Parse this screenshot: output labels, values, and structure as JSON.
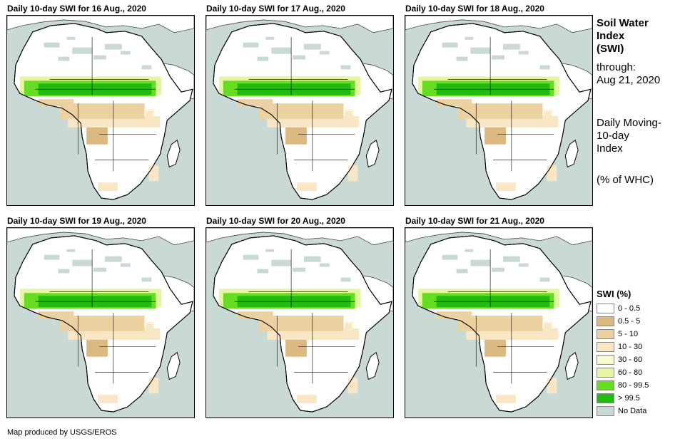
{
  "panels": [
    {
      "title": "Daily 10-day  SWI for 16 Aug., 2020"
    },
    {
      "title": "Daily 10-day  SWI for 17 Aug., 2020"
    },
    {
      "title": "Daily 10-day  SWI for 18 Aug., 2020"
    },
    {
      "title": "Daily 10-day  SWI for 19 Aug., 2020"
    },
    {
      "title": "Daily 10-day  SWI for 20 Aug., 2020"
    },
    {
      "title": "Daily 10-day  SWI for 21 Aug., 2020"
    }
  ],
  "side": {
    "title_line1": "Soil Water",
    "title_line2": "Index",
    "title_line3": "(SWI)",
    "through_line1": "through:",
    "through_line2": "Aug 21, 2020",
    "desc_line1": "Daily Moving-",
    "desc_line2": "10-day",
    "desc_line3": "Index",
    "unit": "(% of WHC)"
  },
  "legend": {
    "title": "SWI (%)",
    "items": [
      {
        "label": "0 - 0.5",
        "color": "#ffffff"
      },
      {
        "label": "0.5 - 5",
        "color": "#dcb980"
      },
      {
        "label": "5 - 10",
        "color": "#ecd2a0"
      },
      {
        "label": "10 - 30",
        "color": "#f8e6c4"
      },
      {
        "label": "30 - 60",
        "color": "#fafad2"
      },
      {
        "label": "60 - 80",
        "color": "#e4f6a4"
      },
      {
        "label": "80 - 99.5",
        "color": "#66dd22"
      },
      {
        "label": "> 99.5",
        "color": "#22bb11"
      },
      {
        "label": "No Data",
        "color": "#c9dad6"
      }
    ]
  },
  "footer": {
    "credit": "Map produced by USGS/EROS"
  }
}
